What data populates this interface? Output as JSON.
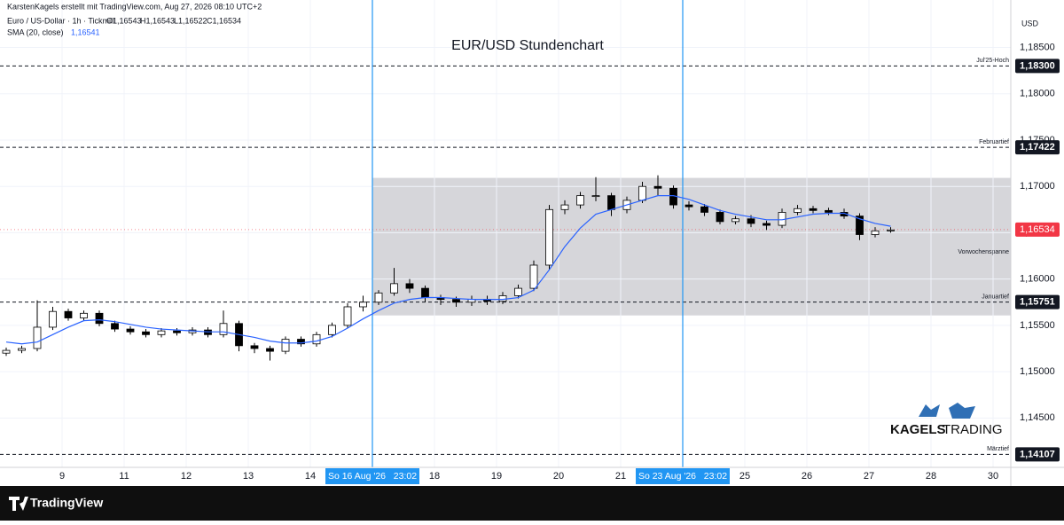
{
  "header": {
    "credit": "KarstenKagels erstellt mit TradingView.com, Aug 27, 2026 08:10 UTC+2",
    "symbol": "Euro / US-Dollar · 1h · Tickmill",
    "ohlc": [
      "O1,16543",
      "H1,16543",
      "L1,16522",
      "C1,16534"
    ],
    "indicator": "SMA (20, close)",
    "indicator_value": "1,16541"
  },
  "brand": [
    "KAGELS",
    "TRADING"
  ],
  "footer": "TradingView",
  "chart_data": {
    "type": "candlestick",
    "title": "EUR/USD Stundenchart",
    "y_unit": "USD",
    "up_color": "#ffffff",
    "down_color": "#000000",
    "wick_color": "#000000",
    "xlim": [
      -1,
      15.2857
    ],
    "ylim": [
      1.14034,
      1.1884
    ],
    "xticks": [
      {
        "value": 0,
        "label": "9"
      },
      {
        "value": 1,
        "label": "11"
      },
      {
        "value": 2,
        "label": "12"
      },
      {
        "value": 3,
        "label": "13"
      },
      {
        "value": 4,
        "label": "14"
      },
      {
        "value": 6,
        "label": "18"
      },
      {
        "value": 7,
        "label": "19"
      },
      {
        "value": 8,
        "label": "20"
      },
      {
        "value": 9,
        "label": "21"
      },
      {
        "value": 11,
        "label": "25"
      },
      {
        "value": 12,
        "label": "26"
      },
      {
        "value": 13,
        "label": "27"
      },
      {
        "value": 14,
        "label": "28"
      },
      {
        "value": 15,
        "label": "30"
      }
    ],
    "yticks": [
      {
        "value": 1.145,
        "label": "1,14500"
      },
      {
        "value": 1.15,
        "label": "1,15000"
      },
      {
        "value": 1.155,
        "label": "1,15500"
      },
      {
        "value": 1.16,
        "label": "1,16000"
      },
      {
        "value": 1.165,
        "label": "1,16500"
      },
      {
        "value": 1.17,
        "label": "1,17000"
      },
      {
        "value": 1.175,
        "label": "1,17500"
      },
      {
        "value": 1.18,
        "label": "1,18000"
      },
      {
        "value": 1.185,
        "label": "1,18500"
      }
    ],
    "grid": true,
    "crosshair_lines": [
      {
        "value": 5,
        "label": "So 16 Aug '26   23:02",
        "color": "#2196f3"
      },
      {
        "value": 10,
        "label": "So 23 Aug '26   23:02",
        "color": "#2196f3"
      }
    ],
    "range_box": {
      "label": "Vorwochenspanne",
      "x_start": 5,
      "high": 1.17092,
      "low": 1.15607,
      "color": "#d1d1d6"
    },
    "levels": [
      {
        "name": "Jul'25-Hoch",
        "value": 1.183,
        "label": "1,18300"
      },
      {
        "name": "Februartief",
        "value": 1.17422,
        "label": "1,17422"
      },
      {
        "name": "Januartief",
        "value": 1.15751,
        "label": "1,15751"
      },
      {
        "name": "Märztief",
        "value": 1.14107,
        "label": "1,14107"
      }
    ],
    "last_price": {
      "value": 1.16534,
      "label": "1,16534",
      "color": "#f23645"
    },
    "x": [
      -0.9,
      -0.65,
      -0.4,
      -0.15,
      0.1,
      0.35,
      0.6,
      0.85,
      1.1,
      1.35,
      1.6,
      1.85,
      2.1,
      2.35,
      2.6,
      2.85,
      3.1,
      3.35,
      3.6,
      3.85,
      4.1,
      4.35,
      4.6,
      4.85,
      5.1,
      5.35,
      5.6,
      5.85,
      6.1,
      6.35,
      6.6,
      6.85,
      7.1,
      7.35,
      7.6,
      7.85,
      8.1,
      8.35,
      8.6,
      8.85,
      9.1,
      9.35,
      9.6,
      9.85,
      10.1,
      10.35,
      10.6,
      10.85,
      11.1,
      11.35,
      11.6,
      11.85,
      12.1,
      12.35,
      12.6,
      12.85,
      13.1,
      13.35
    ],
    "open": [
      1.152,
      1.1523,
      1.1525,
      1.1548,
      1.1565,
      1.1558,
      1.1563,
      1.1552,
      1.1546,
      1.1543,
      1.154,
      1.1544,
      1.1542,
      1.1545,
      1.154,
      1.1552,
      1.1528,
      1.1525,
      1.1522,
      1.1535,
      1.153,
      1.154,
      1.155,
      1.157,
      1.1575,
      1.1585,
      1.1595,
      1.159,
      1.158,
      1.1578,
      1.1575,
      1.1578,
      1.1576,
      1.1582,
      1.159,
      1.1615,
      1.1675,
      1.168,
      1.169,
      1.169,
      1.1675,
      1.1685,
      1.17,
      1.1698,
      1.168,
      1.1678,
      1.1672,
      1.1662,
      1.1665,
      1.166,
      1.1658,
      1.1672,
      1.1676,
      1.1674,
      1.1672,
      1.1668,
      1.1648,
      1.1652
    ],
    "high": [
      1.1526,
      1.1528,
      1.1577,
      1.157,
      1.1568,
      1.1566,
      1.1566,
      1.1555,
      1.1549,
      1.1546,
      1.1547,
      1.1547,
      1.1548,
      1.1548,
      1.1566,
      1.1555,
      1.1531,
      1.1528,
      1.1538,
      1.1538,
      1.1543,
      1.1553,
      1.1574,
      1.1582,
      1.1588,
      1.1612,
      1.16,
      1.1593,
      1.1583,
      1.1581,
      1.1582,
      1.1582,
      1.1586,
      1.1594,
      1.162,
      1.168,
      1.1685,
      1.1694,
      1.171,
      1.1693,
      1.1689,
      1.1705,
      1.1712,
      1.1701,
      1.1684,
      1.1681,
      1.1675,
      1.1668,
      1.1669,
      1.1663,
      1.1676,
      1.168,
      1.1679,
      1.1677,
      1.1676,
      1.1671,
      1.1656,
      1.1656
    ],
    "low": [
      1.1517,
      1.152,
      1.1522,
      1.1545,
      1.1555,
      1.1555,
      1.1549,
      1.1543,
      1.154,
      1.1537,
      1.1537,
      1.1539,
      1.1539,
      1.1537,
      1.1537,
      1.1522,
      1.152,
      1.1512,
      1.1519,
      1.1527,
      1.1527,
      1.1537,
      1.1547,
      1.1565,
      1.1572,
      1.1582,
      1.1585,
      1.1575,
      1.1572,
      1.157,
      1.1571,
      1.1572,
      1.1573,
      1.1579,
      1.1587,
      1.161,
      1.167,
      1.1676,
      1.1684,
      1.1668,
      1.1671,
      1.1682,
      1.169,
      1.1676,
      1.1674,
      1.1668,
      1.1659,
      1.1659,
      1.1656,
      1.1653,
      1.1655,
      1.1669,
      1.1671,
      1.1669,
      1.1665,
      1.1642,
      1.1645,
      1.165
    ],
    "close": [
      1.1523,
      1.1525,
      1.1548,
      1.1565,
      1.1558,
      1.1563,
      1.1552,
      1.1546,
      1.1543,
      1.154,
      1.1544,
      1.1542,
      1.1545,
      1.154,
      1.1552,
      1.1528,
      1.1525,
      1.1522,
      1.1535,
      1.153,
      1.154,
      1.155,
      1.157,
      1.1575,
      1.1585,
      1.1595,
      1.159,
      1.158,
      1.1578,
      1.1575,
      1.1578,
      1.1576,
      1.1582,
      1.159,
      1.1615,
      1.1675,
      1.168,
      1.169,
      1.169,
      1.1675,
      1.1685,
      1.17,
      1.1698,
      1.168,
      1.1678,
      1.1672,
      1.1662,
      1.1665,
      1.166,
      1.1658,
      1.1672,
      1.1676,
      1.1674,
      1.1672,
      1.1668,
      1.1648,
      1.1652,
      1.1653
    ],
    "sma": {
      "color": "#2962ff",
      "values": [
        1.1532,
        1.153,
        1.1532,
        1.154,
        1.1548,
        1.1555,
        1.1556,
        1.1554,
        1.1551,
        1.1548,
        1.1546,
        1.1545,
        1.1544,
        1.1543,
        1.1543,
        1.154,
        1.1537,
        1.1533,
        1.1531,
        1.1531,
        1.1533,
        1.1538,
        1.1547,
        1.1557,
        1.1566,
        1.1574,
        1.1578,
        1.158,
        1.158,
        1.1579,
        1.1578,
        1.1578,
        1.1578,
        1.158,
        1.1588,
        1.161,
        1.1635,
        1.1655,
        1.167,
        1.1675,
        1.168,
        1.1685,
        1.169,
        1.169,
        1.1686,
        1.168,
        1.1674,
        1.167,
        1.1667,
        1.1664,
        1.1664,
        1.1667,
        1.167,
        1.1671,
        1.1671,
        1.1665,
        1.166,
        1.1657
      ]
    }
  }
}
